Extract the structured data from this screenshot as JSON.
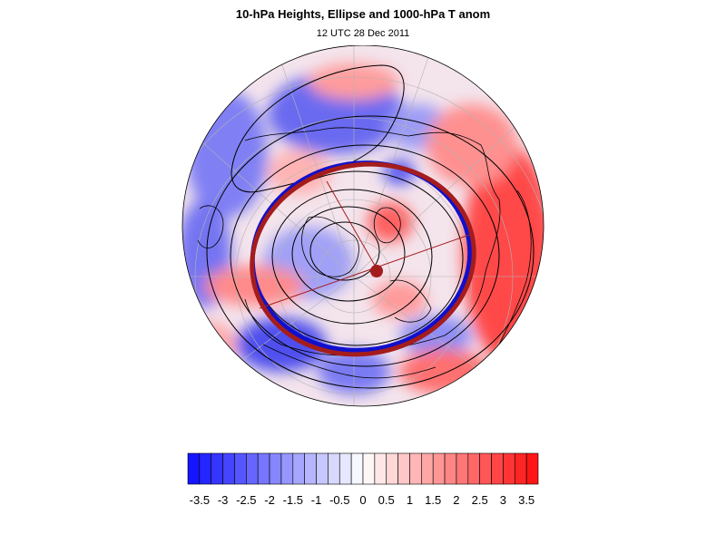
{
  "title": "10-hPa Heights, Ellipse and 1000-hPa T anom",
  "subtitle": "12 UTC 28 Dec 2011",
  "colors": {
    "cold": "#0d0dff",
    "warm": "#ff0d0d",
    "ellipse_blue": "#1010cc",
    "ellipse_red": "#a51c1c",
    "contour": "#000000",
    "coast": "#000000",
    "grid": "#b0b0b0"
  },
  "colorbar": {
    "min": -3.75,
    "max": 3.75,
    "step": 0.25,
    "tick_labels": [
      "-3.5",
      "-3",
      "-2.5",
      "-2",
      "-1.5",
      "-1",
      "-0.5",
      "0",
      "0.5",
      "1",
      "1.5",
      "2",
      "2.5",
      "3",
      "3.5"
    ]
  }
}
